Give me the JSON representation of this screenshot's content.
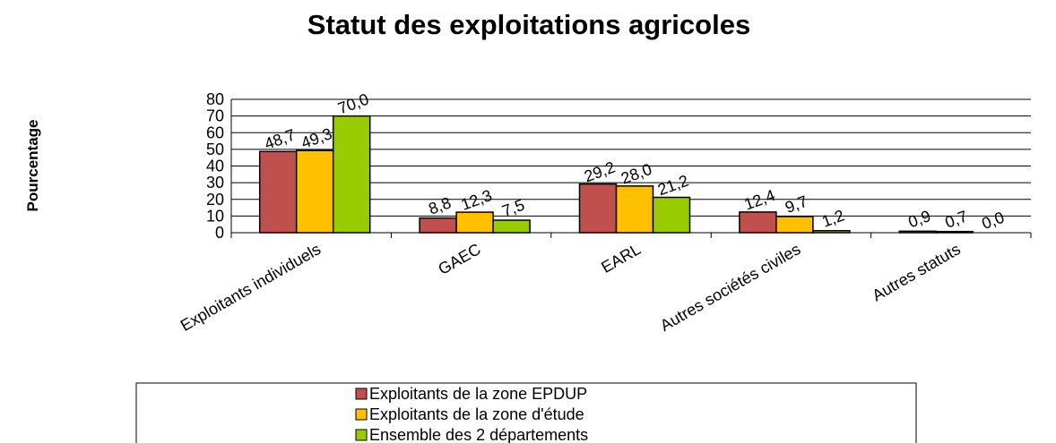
{
  "chart_data": {
    "type": "bar",
    "title": "Statut des exploitations agricoles",
    "y_label": "Pourcentage",
    "categories": [
      "Exploitants individuels",
      "GAEC",
      "EARL",
      "Autres sociétés civiles",
      "Autres statuts"
    ],
    "series": [
      {
        "name": "Exploitants de la zone EPDUP",
        "color": "#c0504d",
        "values": [
          48.7,
          8.8,
          29.2,
          12.4,
          0.9
        ],
        "value_labels": [
          "48,7",
          "8,8",
          "29,2",
          "12,4",
          "0,9"
        ]
      },
      {
        "name": "Exploitants de la zone d'étude",
        "color": "#ffc000",
        "values": [
          49.3,
          12.3,
          28.0,
          9.7,
          0.7
        ],
        "value_labels": [
          "49,3",
          "12,3",
          "28,0",
          "9,7",
          "0,7"
        ]
      },
      {
        "name": "Ensemble des 2 départements",
        "color": "#99cc00",
        "values": [
          70.0,
          7.5,
          21.2,
          1.2,
          0.0
        ],
        "value_labels": [
          "70,0",
          "7,5",
          "21,2",
          "1,2",
          "0,0"
        ]
      }
    ],
    "ylim": [
      0,
      80
    ],
    "yticks": [
      0,
      10,
      20,
      30,
      40,
      50,
      60,
      70,
      80
    ],
    "grid": true,
    "legend": "bottom"
  }
}
